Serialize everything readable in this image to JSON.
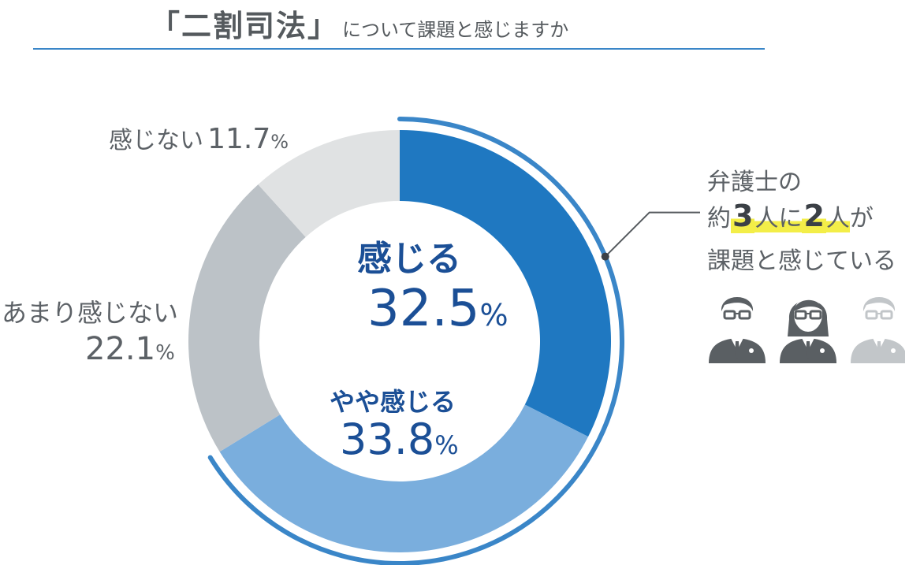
{
  "title": {
    "main": "「二割司法」",
    "sub": "について課題と感じますか"
  },
  "chart_data": {
    "type": "pie",
    "title": "「二割司法」について課題と感じますか",
    "slices": [
      {
        "label": "感じる",
        "value": 32.5,
        "color": "#1f78c1"
      },
      {
        "label": "やや感じる",
        "value": 33.8,
        "color": "#7aaedd"
      },
      {
        "label": "あまり感じない",
        "value": 22.1,
        "color": "#bcc2c7"
      },
      {
        "label": "感じない",
        "value": 11.7,
        "color": "#e0e2e3"
      }
    ],
    "unit": "%",
    "highlight_arc_color": "#3a86c8",
    "highlighted_slices": [
      "感じる",
      "やや感じる"
    ]
  },
  "labels": {
    "kanjiru": {
      "cat": "感じる",
      "pct": "32.5"
    },
    "yaya": {
      "cat": "やや感じる",
      "pct": "33.8"
    },
    "amari": {
      "cat": "あまり感じない",
      "pct": "22.1"
    },
    "kanjinai": {
      "cat": "感じない",
      "pct": "11.7"
    },
    "unit": "%"
  },
  "annotation": {
    "line1": "弁護士の",
    "line2_pre": "約",
    "num1": "3",
    "mid1": "人に",
    "num2": "2",
    "mid2": "人",
    "line2_post": "が",
    "line3": "課題と感じている"
  },
  "people_icons": [
    {
      "name": "man-with-glasses-icon",
      "color": "#5a5f63"
    },
    {
      "name": "woman-with-glasses-icon",
      "color": "#5a5f63"
    },
    {
      "name": "man-with-glasses-faded-icon",
      "color": "#c2c6c9"
    }
  ]
}
